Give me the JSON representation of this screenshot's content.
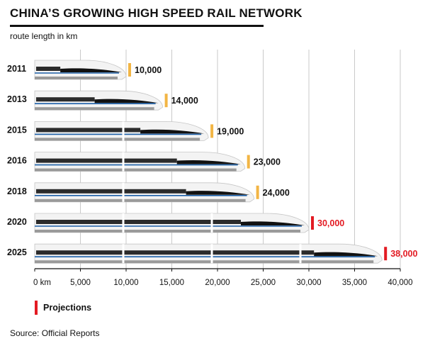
{
  "header": {
    "title": "CHINA’S GROWING HIGH SPEED RAIL NETWORK",
    "subtitle": "route length in km"
  },
  "legend": {
    "label": "Projections",
    "color": "#e31b23"
  },
  "source": "Source: Official Reports",
  "colors": {
    "actual_marker": "#f2b544",
    "projection_marker": "#e31b23",
    "projection_text": "#e31b23",
    "train_body": "#f3f3f3",
    "train_cab": "#111111",
    "train_stripe": "#1c5fa8",
    "grid": "#c9c9c9"
  },
  "chart_data": {
    "type": "bar",
    "orientation": "horizontal",
    "categories": [
      "2011",
      "2013",
      "2015",
      "2016",
      "2018",
      "2020",
      "2025"
    ],
    "values": [
      10000,
      14000,
      19000,
      23000,
      24000,
      30000,
      38000
    ],
    "value_labels": [
      "10,000",
      "14,000",
      "19,000",
      "23,000",
      "24,000",
      "30,000",
      "38,000"
    ],
    "projected": [
      false,
      false,
      false,
      false,
      false,
      true,
      true
    ],
    "xlim": [
      0,
      40000
    ],
    "x_ticks": [
      0,
      5000,
      10000,
      15000,
      20000,
      25000,
      30000,
      35000,
      40000
    ],
    "x_tick_labels": [
      "0 km",
      "5,000",
      "10,000",
      "15,000",
      "20,000",
      "25,000",
      "30,000",
      "35,000",
      "40,000"
    ],
    "grid": true
  }
}
